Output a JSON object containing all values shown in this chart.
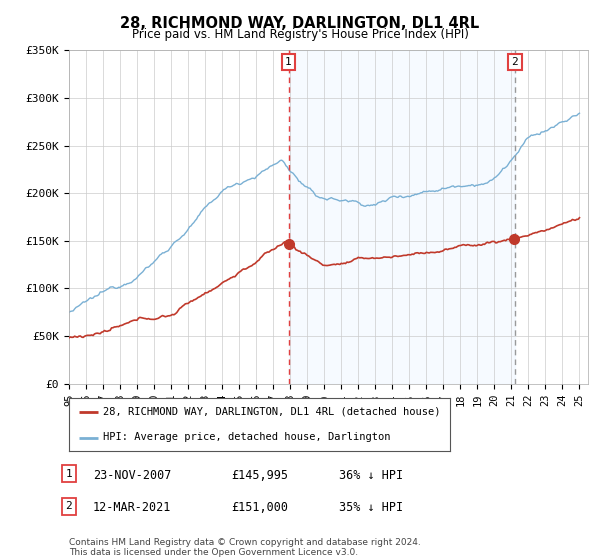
{
  "title": "28, RICHMOND WAY, DARLINGTON, DL1 4RL",
  "subtitle": "Price paid vs. HM Land Registry's House Price Index (HPI)",
  "ylabel_ticks": [
    "£0",
    "£50K",
    "£100K",
    "£150K",
    "£200K",
    "£250K",
    "£300K",
    "£350K"
  ],
  "ytick_values": [
    0,
    50000,
    100000,
    150000,
    200000,
    250000,
    300000,
    350000
  ],
  "ylim": [
    0,
    350000
  ],
  "hpi_color": "#7ab0d4",
  "price_color": "#c0392b",
  "vline1_color": "#e04040",
  "vline2_color": "#999999",
  "shade_color": "#ddeeff",
  "sale1_year": 2007.9,
  "sale2_year": 2021.2,
  "sale1_label": "1",
  "sale2_label": "2",
  "legend1": "28, RICHMOND WAY, DARLINGTON, DL1 4RL (detached house)",
  "legend2": "HPI: Average price, detached house, Darlington",
  "table_row1_num": "1",
  "table_row1_date": "23-NOV-2007",
  "table_row1_price": "£145,995",
  "table_row1_hpi": "36% ↓ HPI",
  "table_row2_num": "2",
  "table_row2_date": "12-MAR-2021",
  "table_row2_price": "£151,000",
  "table_row2_hpi": "35% ↓ HPI",
  "footer": "Contains HM Land Registry data © Crown copyright and database right 2024.\nThis data is licensed under the Open Government Licence v3.0.",
  "bg_color": "#ffffff",
  "grid_color": "#cccccc"
}
